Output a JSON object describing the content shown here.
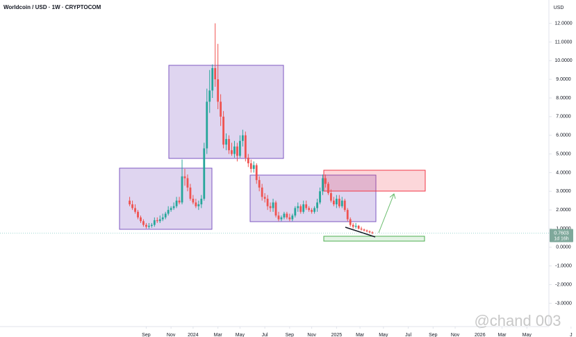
{
  "chart_data": {
    "type": "candlestick",
    "title": "Worldcoin / USD · 1W · CRYPTOCOM",
    "currency": "USD",
    "countdown": "1d 16h",
    "watermark": "@chand 003",
    "up_color": "#26a69a",
    "down_color": "#ef5350",
    "open": [
      2.5,
      2.3,
      2.1,
      1.9,
      1.6,
      1.4,
      1.2,
      1.1,
      1.15,
      1.2,
      1.45,
      1.4,
      1.5,
      1.6,
      1.8,
      2.0,
      2.1,
      2.2,
      2.5,
      2.4,
      3.8,
      3.7,
      3.2,
      2.6,
      2.4,
      2.2,
      2.3,
      2.6,
      5.3,
      7.8,
      8.4,
      9.6,
      9.0,
      7.8,
      7.0,
      5.5,
      5.8,
      5.2,
      5.0,
      5.4,
      4.9,
      5.7,
      6.0,
      4.8,
      4.5,
      4.2,
      4.4,
      3.6,
      3.2,
      2.7,
      2.6,
      2.2,
      2.1,
      2.4,
      1.7,
      1.5,
      1.6,
      1.8,
      1.6,
      1.5,
      1.7,
      2.1,
      2.2,
      1.9,
      2.3,
      2.1,
      2.0,
      1.9,
      2.1,
      2.4,
      3.0,
      3.7,
      3.4,
      2.9,
      2.5,
      2.3,
      2.6,
      2.2,
      2.5,
      2.0,
      1.5,
      1.2,
      1.1,
      1.15,
      1.0,
      0.95,
      0.9,
      0.85,
      0.8
    ],
    "high": [
      2.7,
      2.5,
      2.3,
      2.0,
      1.7,
      1.5,
      1.3,
      1.3,
      1.3,
      1.6,
      1.6,
      1.7,
      1.8,
      1.9,
      2.2,
      2.2,
      2.4,
      2.7,
      2.7,
      4.7,
      4.2,
      3.9,
      3.4,
      2.8,
      2.6,
      2.5,
      2.8,
      5.6,
      8.5,
      9.5,
      9.8,
      12.0,
      10.9,
      8.2,
      7.3,
      6.1,
      6.0,
      5.6,
      5.7,
      5.6,
      6.0,
      6.3,
      6.2,
      5.0,
      4.7,
      4.6,
      4.5,
      3.8,
      3.4,
      2.9,
      2.8,
      2.4,
      2.6,
      2.5,
      1.9,
      1.7,
      1.9,
      1.9,
      1.8,
      1.8,
      2.2,
      2.4,
      2.3,
      2.5,
      2.5,
      2.2,
      2.1,
      2.2,
      2.6,
      3.2,
      3.9,
      3.9,
      3.5,
      3.1,
      2.7,
      2.8,
      2.8,
      2.7,
      2.6,
      2.1,
      1.6,
      1.3,
      1.3,
      1.2,
      1.1,
      1.0,
      0.95,
      0.9,
      0.85
    ],
    "low": [
      2.2,
      2.0,
      1.8,
      1.5,
      1.3,
      1.1,
      1.0,
      1.0,
      1.05,
      1.1,
      1.3,
      1.3,
      1.4,
      1.5,
      1.7,
      1.9,
      2.0,
      2.1,
      2.3,
      2.3,
      3.3,
      3.0,
      2.5,
      2.3,
      2.1,
      2.0,
      2.1,
      2.5,
      5.0,
      7.2,
      8.0,
      8.6,
      7.4,
      6.5,
      5.3,
      5.2,
      5.0,
      4.9,
      4.8,
      4.6,
      4.8,
      5.4,
      4.6,
      4.3,
      4.0,
      4.0,
      3.4,
      3.0,
      2.5,
      2.4,
      2.0,
      1.9,
      1.9,
      1.6,
      1.4,
      1.4,
      1.5,
      1.5,
      1.4,
      1.4,
      1.6,
      1.9,
      1.8,
      1.8,
      2.0,
      1.9,
      1.8,
      1.8,
      1.9,
      2.3,
      2.8,
      3.2,
      2.8,
      2.4,
      2.2,
      2.1,
      2.1,
      2.1,
      1.9,
      1.4,
      1.1,
      1.0,
      1.0,
      0.95,
      0.9,
      0.85,
      0.8,
      0.75,
      0.7
    ],
    "close": [
      2.3,
      2.1,
      1.9,
      1.6,
      1.4,
      1.2,
      1.1,
      1.15,
      1.2,
      1.45,
      1.4,
      1.5,
      1.6,
      1.8,
      2.0,
      2.1,
      2.2,
      2.5,
      2.4,
      3.8,
      3.7,
      3.2,
      2.6,
      2.4,
      2.2,
      2.3,
      2.6,
      5.3,
      7.8,
      8.4,
      9.6,
      9.0,
      7.8,
      7.0,
      5.5,
      5.8,
      5.2,
      5.0,
      5.4,
      4.9,
      5.7,
      6.0,
      4.8,
      4.5,
      4.2,
      4.4,
      3.6,
      3.2,
      2.7,
      2.6,
      2.2,
      2.1,
      2.4,
      1.7,
      1.5,
      1.6,
      1.8,
      1.6,
      1.5,
      1.7,
      2.1,
      2.2,
      1.9,
      2.3,
      2.1,
      2.0,
      1.9,
      2.1,
      2.4,
      3.0,
      3.7,
      3.4,
      2.9,
      2.5,
      2.3,
      2.6,
      2.2,
      2.5,
      2.0,
      1.5,
      1.2,
      1.1,
      1.15,
      1.0,
      0.95,
      0.9,
      0.85,
      0.8,
      0.7603
    ],
    "xlim": [
      -47,
      154
    ],
    "xticks": [
      {
        "value": 6,
        "label": "Sep"
      },
      {
        "value": 15,
        "label": "Nov"
      },
      {
        "value": 23,
        "label": "2024"
      },
      {
        "value": 32,
        "label": "Mar"
      },
      {
        "value": 40,
        "label": "May"
      },
      {
        "value": 49,
        "label": "Jul"
      },
      {
        "value": 58,
        "label": "Sep"
      },
      {
        "value": 66,
        "label": "Nov"
      },
      {
        "value": 75,
        "label": "2025"
      },
      {
        "value": 83.5,
        "label": "Mar"
      },
      {
        "value": 92,
        "label": "May"
      },
      {
        "value": 101,
        "label": "Jul"
      },
      {
        "value": 110,
        "label": "Sep"
      },
      {
        "value": 118,
        "label": "Nov"
      },
      {
        "value": 127,
        "label": "2026"
      },
      {
        "value": 135,
        "label": "Mar"
      },
      {
        "value": 144,
        "label": "May"
      },
      {
        "value": 160,
        "label": "J"
      }
    ],
    "ylim": [
      -4.25,
      13.25
    ],
    "yticks": [
      {
        "value": -3,
        "label": "-3.0000"
      },
      {
        "value": -2,
        "label": "-2.0000"
      },
      {
        "value": -1,
        "label": "-1.0000"
      },
      {
        "value": 0,
        "label": "0.0000"
      },
      {
        "value": 1,
        "label": "1.0000"
      },
      {
        "value": 2,
        "label": "2.0000"
      },
      {
        "value": 3,
        "label": "3.0000"
      },
      {
        "value": 4,
        "label": "4.0000"
      },
      {
        "value": 5,
        "label": "5.0000"
      },
      {
        "value": 6,
        "label": "6.0000"
      },
      {
        "value": 7,
        "label": "7.0000"
      },
      {
        "value": 8,
        "label": "8.0000"
      },
      {
        "value": 9,
        "label": "9.0000"
      },
      {
        "value": 10,
        "label": "10.0000"
      },
      {
        "value": 11,
        "label": "11.0000"
      },
      {
        "value": 12,
        "label": "12.0000"
      }
    ],
    "grid": false
  }
}
